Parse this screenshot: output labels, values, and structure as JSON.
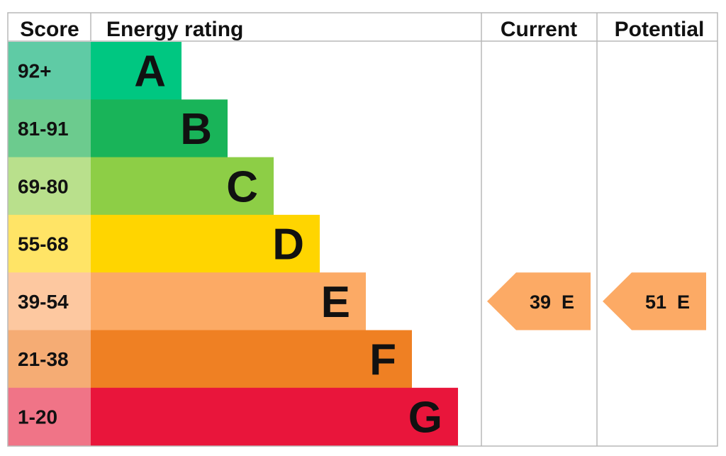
{
  "chart_data": {
    "type": "table",
    "headers": {
      "score": "Score",
      "rating": "Energy rating",
      "current": "Current",
      "potential": "Potential"
    },
    "bands": [
      {
        "score": "92+",
        "letter": "A",
        "color": "#00c781",
        "light_color": "#5fcba5"
      },
      {
        "score": "81-91",
        "letter": "B",
        "color": "#19b459",
        "light_color": "#6ccb8e"
      },
      {
        "score": "69-80",
        "letter": "C",
        "color": "#8dce46",
        "light_color": "#b9e08c"
      },
      {
        "score": "55-68",
        "letter": "D",
        "color": "#ffd500",
        "light_color": "#ffe466"
      },
      {
        "score": "39-54",
        "letter": "E",
        "color": "#fcaa65",
        "light_color": "#fdc8a0"
      },
      {
        "score": "21-38",
        "letter": "F",
        "color": "#ef8023",
        "light_color": "#f5ac74"
      },
      {
        "score": "1-20",
        "letter": "G",
        "color": "#e9153b",
        "light_color": "#f07487"
      }
    ],
    "current": {
      "value": 39,
      "band": "E",
      "label": "39  E"
    },
    "potential": {
      "value": 51,
      "band": "E",
      "label": "51  E"
    }
  }
}
